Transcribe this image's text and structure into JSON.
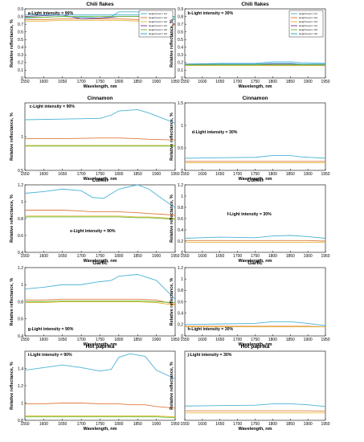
{
  "colors": {
    "H1": "#4bb3d6",
    "H2": "#e07a3e",
    "H3": "#e3b93a",
    "H4": "#7a3f9a",
    "H5": "#6cbf3a",
    "H6": "#2fa3c9"
  },
  "chart_data": [
    {
      "type": "line",
      "title": "Chili flakes",
      "annotation": "a-Light intensity = 90%",
      "xlabel": "Wavelength, nm",
      "ylabel": "Relative reflectance, %",
      "xlim": [
        1550,
        1950
      ],
      "ylim": [
        0,
        0.9
      ],
      "yticks": [
        0,
        0.1,
        0.2,
        0.3,
        0.4,
        0.5,
        0.6,
        0.7,
        0.8,
        0.9
      ],
      "grid": false,
      "legend": {
        "position": "top-right",
        "entries": [
          "Height level = H1",
          "Height level = H2",
          "Height level = H3",
          "Height level = H4",
          "Height level = H5",
          "Height level = H6"
        ]
      },
      "x": [
        1550,
        1600,
        1650,
        1700,
        1750,
        1780,
        1800,
        1850,
        1880,
        1900,
        1950
      ],
      "series": [
        {
          "name": "H1",
          "values": [
            0.78,
            0.79,
            0.8,
            0.79,
            0.78,
            0.8,
            0.86,
            0.86,
            0.83,
            0.8,
            0.76
          ]
        },
        {
          "name": "H2",
          "values": [
            0.76,
            0.76,
            0.77,
            0.77,
            0.77,
            0.77,
            0.77,
            0.76,
            0.74,
            0.72,
            0.69
          ]
        },
        {
          "name": "H3",
          "values": [
            0.74,
            0.74,
            0.75,
            0.75,
            0.75,
            0.75,
            0.75,
            0.74,
            0.73,
            0.72,
            0.7
          ]
        },
        {
          "name": "H4",
          "values": [
            0.8,
            0.81,
            0.82,
            0.77,
            0.78,
            0.79,
            0.8,
            0.8,
            0.78,
            0.74,
            0.7
          ]
        },
        {
          "name": "H5",
          "values": [
            0.79,
            0.79,
            0.8,
            0.8,
            0.8,
            0.8,
            0.8,
            0.8,
            0.8,
            0.79,
            0.78
          ]
        },
        {
          "name": "H6",
          "values": [
            0.82,
            0.82,
            0.82,
            0.82,
            0.82,
            0.82,
            0.82,
            0.82,
            0.82,
            0.81,
            0.8
          ]
        }
      ]
    },
    {
      "type": "line",
      "title": "Chili flakes",
      "annotation": "b-Light intensity = 30%",
      "xlabel": "Wavelength, nm",
      "ylabel": "",
      "xlim": [
        1550,
        1950
      ],
      "ylim": [
        0,
        0.9
      ],
      "yticks": [
        0,
        0.1,
        0.2,
        0.3,
        0.4,
        0.5,
        0.6,
        0.7,
        0.8,
        0.9
      ],
      "grid": false,
      "legend": {
        "position": "top-right",
        "entries": [
          "Height level = H1",
          "Height level = H2",
          "Height level = H3",
          "Height level = H4",
          "Height level = H5",
          "Height level = H6"
        ]
      },
      "x": [
        1550,
        1650,
        1750,
        1800,
        1850,
        1880,
        1950
      ],
      "series": [
        {
          "name": "H1",
          "values": [
            0.18,
            0.19,
            0.19,
            0.21,
            0.21,
            0.2,
            0.19
          ]
        },
        {
          "name": "H2",
          "values": [
            0.17,
            0.17,
            0.17,
            0.17,
            0.17,
            0.17,
            0.16
          ]
        },
        {
          "name": "H3",
          "values": [
            0.16,
            0.16,
            0.16,
            0.16,
            0.16,
            0.16,
            0.16
          ]
        },
        {
          "name": "H4",
          "values": [
            0.18,
            0.18,
            0.18,
            0.18,
            0.18,
            0.18,
            0.17
          ]
        },
        {
          "name": "H5",
          "values": [
            0.17,
            0.17,
            0.17,
            0.17,
            0.17,
            0.17,
            0.17
          ]
        },
        {
          "name": "H6",
          "values": [
            0.18,
            0.18,
            0.18,
            0.19,
            0.19,
            0.18,
            0.18
          ]
        }
      ]
    },
    {
      "type": "line",
      "title": "Cinnamon",
      "annotation": "c-Light intensity = 90%",
      "xlabel": "Wavelength, nm",
      "ylabel": "Relative reflectance, %",
      "xlim": [
        1550,
        1950
      ],
      "ylim": [
        0.5,
        1.5
      ],
      "yticks": [
        0.5,
        1
      ],
      "grid": false,
      "x": [
        1550,
        1650,
        1750,
        1780,
        1800,
        1850,
        1880,
        1950
      ],
      "series": [
        {
          "name": "H1",
          "values": [
            1.25,
            1.26,
            1.27,
            1.32,
            1.38,
            1.4,
            1.35,
            1.2
          ]
        },
        {
          "name": "H2",
          "values": [
            0.97,
            0.97,
            0.98,
            0.98,
            0.98,
            0.97,
            0.96,
            0.95
          ]
        },
        {
          "name": "H3",
          "values": [
            0.87,
            0.87,
            0.87,
            0.87,
            0.87,
            0.87,
            0.87,
            0.87
          ]
        },
        {
          "name": "H5",
          "values": [
            0.86,
            0.86,
            0.86,
            0.86,
            0.86,
            0.86,
            0.86,
            0.86
          ]
        }
      ]
    },
    {
      "type": "line",
      "title": "Cinnamon",
      "annotation": "d-Light intensity = 30%",
      "xlabel": "Wavelength, nm",
      "ylabel": "",
      "xlim": [
        1550,
        1950
      ],
      "ylim": [
        0,
        1.5
      ],
      "yticks": [
        0,
        0.5,
        1,
        1.5
      ],
      "grid": false,
      "x": [
        1550,
        1650,
        1750,
        1800,
        1850,
        1880,
        1950
      ],
      "series": [
        {
          "name": "H1",
          "values": [
            0.27,
            0.28,
            0.29,
            0.33,
            0.33,
            0.3,
            0.27
          ]
        },
        {
          "name": "H2",
          "values": [
            0.2,
            0.2,
            0.2,
            0.2,
            0.2,
            0.2,
            0.2
          ]
        },
        {
          "name": "H3",
          "values": [
            0.17,
            0.17,
            0.17,
            0.17,
            0.17,
            0.17,
            0.17
          ]
        }
      ]
    },
    {
      "type": "line",
      "title": "Cumin",
      "annotation": "e-Light intensity = 90%",
      "xlabel": "Wavelength, nm",
      "ylabel": "Relative reflectance, %",
      "xlim": [
        1550,
        1950
      ],
      "ylim": [
        0.4,
        1.2
      ],
      "yticks": [
        0.4,
        0.6,
        0.8,
        1,
        1.2
      ],
      "grid": false,
      "x": [
        1550,
        1600,
        1650,
        1700,
        1730,
        1760,
        1800,
        1850,
        1880,
        1920,
        1950
      ],
      "series": [
        {
          "name": "H1",
          "values": [
            1.1,
            1.12,
            1.15,
            1.13,
            1.05,
            1.04,
            1.15,
            1.2,
            1.15,
            1.02,
            0.93
          ]
        },
        {
          "name": "H2",
          "values": [
            0.9,
            0.9,
            0.9,
            0.89,
            0.88,
            0.88,
            0.88,
            0.87,
            0.86,
            0.85,
            0.84
          ]
        },
        {
          "name": "H3",
          "values": [
            0.83,
            0.83,
            0.83,
            0.83,
            0.83,
            0.83,
            0.83,
            0.82,
            0.82,
            0.81,
            0.8
          ]
        },
        {
          "name": "H5",
          "values": [
            0.82,
            0.82,
            0.82,
            0.82,
            0.82,
            0.82,
            0.82,
            0.81,
            0.81,
            0.8,
            0.79
          ]
        }
      ]
    },
    {
      "type": "line",
      "title": "Cumin",
      "annotation": "f-Light intensity = 30%",
      "xlabel": "Wavelength, nm",
      "ylabel": "",
      "xlim": [
        1550,
        1950
      ],
      "ylim": [
        0,
        1.2
      ],
      "yticks": [
        0,
        0.2,
        0.4,
        0.6,
        0.8,
        1,
        1.2
      ],
      "grid": false,
      "x": [
        1550,
        1650,
        1750,
        1800,
        1850,
        1900,
        1950
      ],
      "series": [
        {
          "name": "H1",
          "values": [
            0.25,
            0.27,
            0.26,
            0.29,
            0.3,
            0.28,
            0.25
          ]
        },
        {
          "name": "H2",
          "values": [
            0.21,
            0.21,
            0.21,
            0.21,
            0.21,
            0.21,
            0.2
          ]
        },
        {
          "name": "H3",
          "values": [
            0.18,
            0.18,
            0.18,
            0.18,
            0.18,
            0.18,
            0.18
          ]
        }
      ]
    },
    {
      "type": "line",
      "title": "Garlic",
      "annotation": "g-Light intensity = 90%",
      "xlabel": "Wavelength, nm",
      "ylabel": "Relative reflectance, %",
      "xlim": [
        1550,
        1950
      ],
      "ylim": [
        0.4,
        1.2
      ],
      "yticks": [
        0.4,
        0.6,
        0.8,
        1,
        1.2
      ],
      "grid": false,
      "x": [
        1550,
        1600,
        1650,
        1700,
        1740,
        1780,
        1800,
        1850,
        1900,
        1950
      ],
      "series": [
        {
          "name": "H1",
          "values": [
            0.95,
            0.97,
            1.0,
            1.0,
            1.03,
            1.05,
            1.1,
            1.12,
            1.05,
            0.83
          ]
        },
        {
          "name": "H2",
          "values": [
            0.82,
            0.82,
            0.83,
            0.83,
            0.83,
            0.83,
            0.83,
            0.83,
            0.82,
            0.77
          ]
        },
        {
          "name": "H3",
          "values": [
            0.79,
            0.79,
            0.8,
            0.8,
            0.8,
            0.8,
            0.8,
            0.8,
            0.79,
            0.76
          ]
        },
        {
          "name": "H5",
          "values": [
            0.8,
            0.8,
            0.81,
            0.81,
            0.81,
            0.81,
            0.81,
            0.81,
            0.8,
            0.79
          ]
        }
      ]
    },
    {
      "type": "line",
      "title": "Garlic",
      "annotation": "h-Light intensity = 30%",
      "xlabel": "Wavelength, nm",
      "ylabel": "",
      "xlim": [
        1550,
        1950
      ],
      "ylim": [
        0,
        1.2
      ],
      "yticks": [
        0,
        0.2,
        0.4,
        0.6,
        0.8,
        1,
        1.2
      ],
      "grid": false,
      "x": [
        1550,
        1650,
        1750,
        1800,
        1850,
        1900,
        1950
      ],
      "series": [
        {
          "name": "H1",
          "values": [
            0.2,
            0.21,
            0.22,
            0.25,
            0.25,
            0.22,
            0.18
          ]
        },
        {
          "name": "H2",
          "values": [
            0.17,
            0.17,
            0.17,
            0.17,
            0.17,
            0.17,
            0.16
          ]
        },
        {
          "name": "H3",
          "values": [
            0.16,
            0.16,
            0.16,
            0.16,
            0.16,
            0.16,
            0.16
          ]
        }
      ]
    },
    {
      "type": "line",
      "title": "Hot paprika",
      "annotation": "i-Light intensity = 90%",
      "xlabel": "Wavelength, nm",
      "ylabel": "Relative reflectance, %",
      "xlim": [
        1550,
        1950
      ],
      "ylim": [
        0.8,
        1.6
      ],
      "yticks": [
        0.8,
        1,
        1.2,
        1.4
      ],
      "grid": false,
      "x": [
        1550,
        1600,
        1650,
        1700,
        1750,
        1780,
        1800,
        1830,
        1870,
        1900,
        1950
      ],
      "series": [
        {
          "name": "H1",
          "values": [
            1.38,
            1.41,
            1.44,
            1.41,
            1.37,
            1.39,
            1.53,
            1.57,
            1.54,
            1.38,
            1.28
          ]
        },
        {
          "name": "H2",
          "values": [
            0.99,
            0.99,
            1.0,
            1.0,
            0.99,
            0.99,
            0.99,
            0.98,
            0.98,
            0.96,
            0.94
          ]
        },
        {
          "name": "H3",
          "values": [
            0.85,
            0.85,
            0.85,
            0.85,
            0.85,
            0.85,
            0.85,
            0.85,
            0.85,
            0.85,
            0.84
          ]
        },
        {
          "name": "H5",
          "values": [
            0.84,
            0.84,
            0.84,
            0.84,
            0.84,
            0.84,
            0.84,
            0.84,
            0.84,
            0.84,
            0.83
          ]
        }
      ]
    },
    {
      "type": "line",
      "title": "Hot paprika",
      "annotation": "j-Light intensity = 30%",
      "xlabel": "Wavelength, nm",
      "ylabel": "",
      "xlim": [
        1550,
        1950
      ],
      "ylim": [
        0,
        1.6
      ],
      "yticks": [],
      "grid": false,
      "x": [
        1550,
        1650,
        1750,
        1800,
        1850,
        1900,
        1950
      ],
      "series": [
        {
          "name": "H1",
          "values": [
            0.33,
            0.34,
            0.35,
            0.38,
            0.38,
            0.36,
            0.32
          ]
        },
        {
          "name": "H2",
          "values": [
            0.22,
            0.22,
            0.22,
            0.22,
            0.22,
            0.22,
            0.21
          ]
        },
        {
          "name": "H3",
          "values": [
            0.17,
            0.17,
            0.17,
            0.17,
            0.17,
            0.17,
            0.17
          ]
        }
      ]
    }
  ]
}
